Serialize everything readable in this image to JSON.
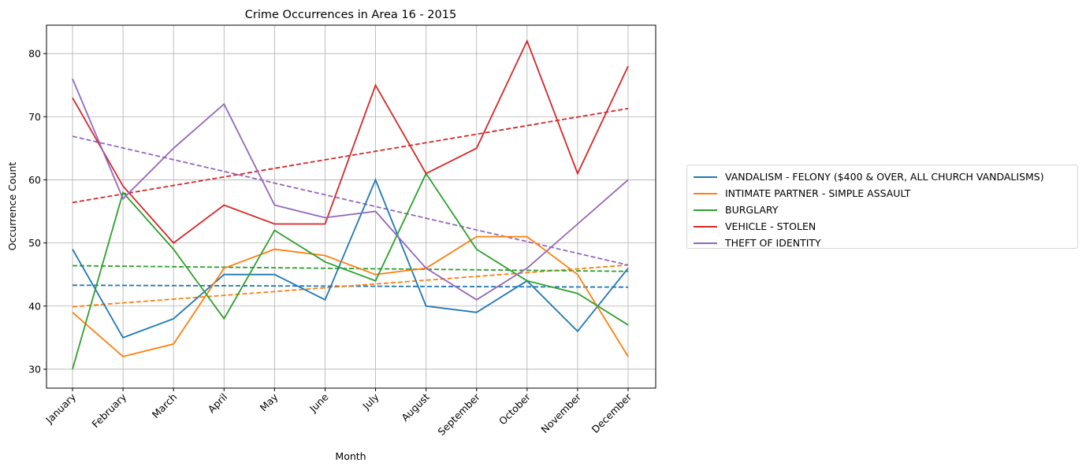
{
  "chart_data": {
    "type": "line",
    "title": "Crime Occurrences in Area 16 - 2015",
    "xlabel": "Month",
    "ylabel": "Occurrence Count",
    "categories": [
      "January",
      "February",
      "March",
      "April",
      "May",
      "June",
      "July",
      "August",
      "September",
      "October",
      "November",
      "December"
    ],
    "ylim": [
      27,
      84.5
    ],
    "yticks": [
      30,
      40,
      50,
      60,
      70,
      80
    ],
    "grid": true,
    "legend_position": "right-outside",
    "trendlines": "dashed linear fit per series",
    "series": [
      {
        "name": "VANDALISM - FELONY ($400 & OVER, ALL CHURCH VANDALISMS)",
        "color": "#1f77b4",
        "values": [
          49,
          35,
          38,
          45,
          45,
          41,
          60,
          40,
          39,
          44,
          36,
          46
        ],
        "trend": [
          43.3,
          43.0
        ]
      },
      {
        "name": "INTIMATE PARTNER - SIMPLE ASSAULT",
        "color": "#ff7f0e",
        "values": [
          39,
          32,
          34,
          46,
          49,
          48,
          45,
          46,
          51,
          51,
          45,
          32
        ],
        "trend": [
          39.9,
          46.5
        ]
      },
      {
        "name": "BURGLARY",
        "color": "#2ca02c",
        "values": [
          30,
          58,
          49,
          38,
          52,
          47,
          44,
          61,
          49,
          44,
          42,
          37
        ],
        "trend": [
          46.4,
          45.5
        ]
      },
      {
        "name": "VEHICLE - STOLEN",
        "color": "#d62728",
        "values": [
          73,
          59,
          50,
          56,
          53,
          53,
          75,
          61,
          65,
          82,
          61,
          78
        ],
        "trend": [
          56.4,
          71.3
        ]
      },
      {
        "name": "THEFT OF IDENTITY",
        "color": "#9467bd",
        "values": [
          76,
          57,
          65,
          72,
          56,
          54,
          55,
          46,
          41,
          46,
          53,
          60
        ],
        "trend": [
          66.9,
          46.5
        ]
      }
    ]
  }
}
